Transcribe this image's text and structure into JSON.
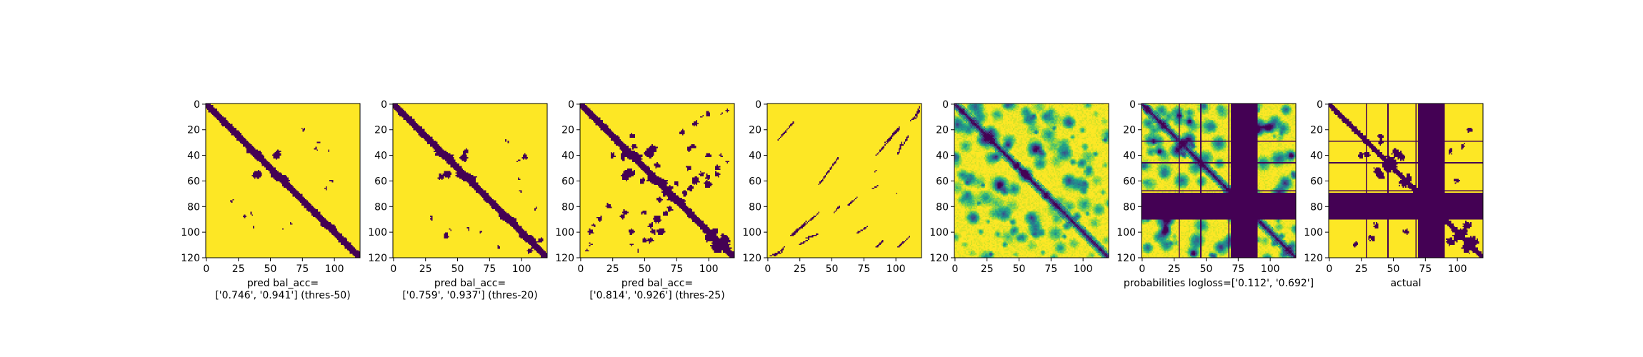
{
  "chart_data": [
    {
      "type": "heatmap",
      "matrix_size": 121,
      "colormap": "viridis",
      "values": "binary",
      "pattern": "predicted-contacts-thresholded",
      "xlim": [
        0,
        120
      ],
      "ylim": [
        120,
        0
      ],
      "xticks": [
        0,
        25,
        50,
        75,
        100
      ],
      "yticks": [
        0,
        20,
        40,
        60,
        80,
        100,
        120
      ],
      "xlabel": "pred bal_acc=\n['0.746', '0.941'] (thres-50)",
      "diagonal_band_half_width": 3,
      "diagonal_wobble": [
        [
          38,
          2
        ],
        [
          57,
          3
        ],
        [
          96,
          2
        ]
      ],
      "blobs": [
        [
          55,
          40,
          3
        ],
        [
          56,
          38,
          2
        ],
        [
          88,
          30,
          1
        ],
        [
          96,
          37,
          1
        ],
        [
          20,
          76,
          1
        ],
        [
          35,
          86,
          1
        ],
        [
          60,
          98,
          1
        ],
        [
          94,
          66,
          1
        ]
      ]
    },
    {
      "type": "heatmap",
      "matrix_size": 121,
      "colormap": "viridis",
      "values": "binary",
      "pattern": "predicted-contacts-thresholded",
      "xlim": [
        0,
        120
      ],
      "ylim": [
        120,
        0
      ],
      "xticks": [
        0,
        25,
        50,
        75,
        100
      ],
      "yticks": [
        0,
        20,
        40,
        60,
        80,
        100,
        120
      ],
      "xlabel": "pred bal_acc=\n['0.759', '0.937'] (thres-20)",
      "diagonal_band_half_width": 3,
      "diagonal_wobble": [
        [
          40,
          3
        ],
        [
          57,
          4
        ],
        [
          90,
          3
        ],
        [
          105,
          2
        ]
      ],
      "blobs": [
        [
          55,
          42,
          3
        ],
        [
          57,
          37,
          2
        ],
        [
          29,
          88,
          1
        ],
        [
          41,
          103,
          2
        ],
        [
          98,
          44,
          1
        ],
        [
          88,
          29,
          1
        ],
        [
          107,
          115,
          2
        ],
        [
          59,
          98,
          1
        ],
        [
          112,
          82,
          1
        ],
        [
          100,
          68,
          1
        ],
        [
          90,
          30,
          1
        ]
      ]
    },
    {
      "type": "heatmap",
      "matrix_size": 121,
      "colormap": "viridis",
      "values": "binary",
      "pattern": "predicted-contacts-thresholded",
      "xlim": [
        0,
        120
      ],
      "ylim": [
        120,
        0
      ],
      "xticks": [
        0,
        25,
        50,
        75,
        100
      ],
      "yticks": [
        0,
        20,
        40,
        60,
        80,
        100,
        120
      ],
      "xlabel": "pred bal_acc=\n['0.814', '0.926'] (thres-25)",
      "diagonal_band_half_width": 3,
      "diagonal_wobble": [
        [
          40,
          4
        ],
        [
          60,
          4
        ],
        [
          75,
          3
        ],
        [
          110,
          3
        ]
      ],
      "blobs": [
        [
          42,
          33,
          2
        ],
        [
          54,
          38,
          4
        ],
        [
          57,
          35,
          3
        ],
        [
          25,
          40,
          2
        ],
        [
          60,
          48,
          2
        ],
        [
          70,
          66,
          2
        ],
        [
          75,
          62,
          2
        ],
        [
          82,
          70,
          2
        ],
        [
          90,
          60,
          3
        ],
        [
          95,
          55,
          2
        ],
        [
          100,
          57,
          2
        ],
        [
          105,
          100,
          3
        ],
        [
          107,
          113,
          4
        ],
        [
          112,
          109,
          3
        ],
        [
          15,
          90,
          2
        ],
        [
          22,
          80,
          2
        ],
        [
          33,
          88,
          2
        ],
        [
          40,
          100,
          2
        ],
        [
          55,
          107,
          2
        ],
        [
          8,
          110,
          1
        ],
        [
          5,
          115,
          1
        ],
        [
          95,
          10,
          1
        ],
        [
          100,
          8,
          2
        ],
        [
          104,
          112,
          2
        ],
        [
          85,
          35,
          2
        ],
        [
          110,
          40,
          1
        ],
        [
          115,
          45,
          1
        ],
        [
          50,
          107,
          2
        ],
        [
          63,
          100,
          3
        ],
        [
          66,
          86,
          2
        ],
        [
          85,
          50,
          2
        ]
      ]
    },
    {
      "type": "heatmap",
      "matrix_size": 121,
      "colormap": "viridis",
      "values": "binary",
      "pattern": "sparse-off-diagonal-lines",
      "xlim": [
        0,
        120
      ],
      "ylim": [
        120,
        0
      ],
      "xticks": [
        0,
        25,
        50,
        75,
        100
      ],
      "yticks": [
        0,
        20,
        40,
        60,
        80,
        100,
        120
      ],
      "xlabel": "",
      "diagonal_band_half_width": 0,
      "segments": [
        [
          8,
          28,
          20,
          14
        ],
        [
          40,
          63,
          55,
          42
        ],
        [
          85,
          40,
          103,
          19
        ],
        [
          112,
          13,
          119,
          5
        ],
        [
          56,
          80,
          52,
          85
        ],
        [
          63,
          79,
          70,
          73
        ],
        [
          82,
          66,
          86,
          64
        ],
        [
          92,
          30,
          103,
          18
        ],
        [
          30,
          105,
          39,
          102
        ],
        [
          25,
          110,
          32,
          106
        ],
        [
          85,
          112,
          90,
          107
        ],
        [
          2,
          119,
          12,
          114
        ],
        [
          70,
          101,
          78,
          96
        ],
        [
          102,
          112,
          111,
          104
        ],
        [
          9,
          117,
          11,
          116
        ]
      ]
    },
    {
      "type": "heatmap",
      "matrix_size": 121,
      "colormap": "viridis",
      "values": "continuous",
      "pattern": "probabilities",
      "xlim": [
        0,
        120
      ],
      "ylim": [
        120,
        0
      ],
      "xticks": [
        0,
        25,
        50,
        75,
        100
      ],
      "yticks": [
        0,
        20,
        40,
        60,
        80,
        100,
        120
      ],
      "xlabel": ""
    },
    {
      "type": "heatmap",
      "matrix_size": 121,
      "colormap": "viridis",
      "values": "continuous",
      "pattern": "probabilities-masked",
      "xlim": [
        0,
        120
      ],
      "ylim": [
        120,
        0
      ],
      "xticks": [
        0,
        25,
        50,
        75,
        100
      ],
      "yticks": [
        0,
        20,
        40,
        60,
        80,
        100,
        120
      ],
      "xlabel": "probabilities logloss=['0.112', '0.692']",
      "mask_band_rows": [
        70,
        90
      ],
      "mask_band_cols": [
        70,
        90
      ],
      "mask_lines": [
        29,
        46,
        68,
        89
      ]
    },
    {
      "type": "heatmap",
      "matrix_size": 121,
      "colormap": "viridis",
      "values": "binary",
      "pattern": "actual-contacts",
      "xlim": [
        0,
        120
      ],
      "ylim": [
        120,
        0
      ],
      "xticks": [
        0,
        25,
        50,
        75,
        100
      ],
      "yticks": [
        0,
        20,
        40,
        60,
        80,
        100,
        120
      ],
      "xlabel": "actual",
      "mask_band_rows": [
        70,
        90
      ],
      "mask_band_cols": [
        70,
        90
      ],
      "mask_lines": [
        29,
        46,
        68,
        89
      ]
    }
  ],
  "colors": {
    "viridis_low": "#440154",
    "viridis_high": "#fde725",
    "axis": "#000000",
    "background": "#ffffff"
  }
}
